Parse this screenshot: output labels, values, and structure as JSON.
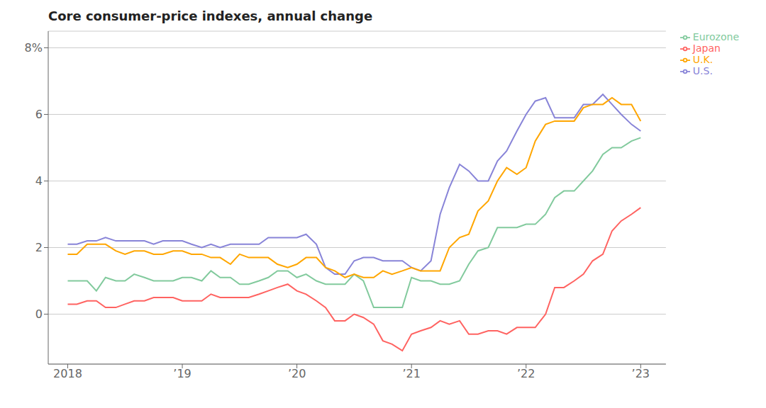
{
  "chart_data": {
    "type": "line",
    "title": "Core consumer-price indexes, annual change",
    "x": [
      2018.0,
      2018.08,
      2018.17,
      2018.25,
      2018.33,
      2018.42,
      2018.5,
      2018.58,
      2018.67,
      2018.75,
      2018.83,
      2018.92,
      2019.0,
      2019.08,
      2019.17,
      2019.25,
      2019.33,
      2019.42,
      2019.5,
      2019.58,
      2019.67,
      2019.75,
      2019.83,
      2019.92,
      2020.0,
      2020.08,
      2020.17,
      2020.25,
      2020.33,
      2020.42,
      2020.5,
      2020.58,
      2020.67,
      2020.75,
      2020.83,
      2020.92,
      2021.0,
      2021.08,
      2021.17,
      2021.25,
      2021.33,
      2021.42,
      2021.5,
      2021.58,
      2021.67,
      2021.75,
      2021.83,
      2021.92,
      2022.0,
      2022.08,
      2022.17,
      2022.25,
      2022.33,
      2022.42,
      2022.5,
      2022.58,
      2022.67,
      2022.75,
      2022.83,
      2022.92,
      2023.0
    ],
    "series": [
      {
        "name": "U.S.",
        "color": "#8884d8",
        "values": [
          2.1,
          2.1,
          2.2,
          2.2,
          2.3,
          2.2,
          2.2,
          2.2,
          2.2,
          2.1,
          2.2,
          2.2,
          2.2,
          2.1,
          2.0,
          2.1,
          2.0,
          2.1,
          2.1,
          2.1,
          2.1,
          2.3,
          2.3,
          2.3,
          2.3,
          2.4,
          2.1,
          1.4,
          1.2,
          1.2,
          1.6,
          1.7,
          1.7,
          1.6,
          1.6,
          1.6,
          1.4,
          1.3,
          1.6,
          3.0,
          3.8,
          4.5,
          4.3,
          4.0,
          4.0,
          4.6,
          4.9,
          5.5,
          6.0,
          6.4,
          6.5,
          5.9,
          5.9,
          5.9,
          6.3,
          6.3,
          6.6,
          6.3,
          6.0,
          5.7,
          5.5
        ]
      },
      {
        "name": "Eurozone",
        "color": "#82ca9d",
        "values": [
          1.0,
          1.0,
          1.0,
          0.7,
          1.1,
          1.0,
          1.0,
          1.2,
          1.1,
          1.0,
          1.0,
          1.0,
          1.1,
          1.1,
          1.0,
          1.3,
          1.1,
          1.1,
          0.9,
          0.9,
          1.0,
          1.1,
          1.3,
          1.3,
          1.1,
          1.2,
          1.0,
          0.9,
          0.9,
          0.9,
          1.2,
          1.0,
          0.2,
          0.2,
          0.2,
          0.2,
          1.1,
          1.0,
          1.0,
          0.9,
          0.9,
          1.0,
          1.5,
          1.9,
          2.0,
          2.6,
          2.6,
          2.6,
          2.7,
          2.7,
          3.0,
          3.5,
          3.7,
          3.7,
          4.0,
          4.3,
          4.8,
          5.0,
          5.0,
          5.2,
          5.3
        ]
      },
      {
        "name": "U.K.",
        "color": "#ffa600",
        "values": [
          1.8,
          1.8,
          2.1,
          2.1,
          2.1,
          1.9,
          1.8,
          1.9,
          1.9,
          1.8,
          1.8,
          1.9,
          1.9,
          1.8,
          1.8,
          1.7,
          1.7,
          1.5,
          1.8,
          1.7,
          1.7,
          1.7,
          1.5,
          1.4,
          1.5,
          1.7,
          1.7,
          1.4,
          1.3,
          1.1,
          1.2,
          1.1,
          1.1,
          1.3,
          1.2,
          1.3,
          1.4,
          1.3,
          1.3,
          1.3,
          2.0,
          2.3,
          2.4,
          3.1,
          3.4,
          4.0,
          4.4,
          4.2,
          4.4,
          5.2,
          5.7,
          5.8,
          5.8,
          5.8,
          6.2,
          6.3,
          6.3,
          6.5,
          6.3,
          6.3,
          5.8
        ]
      },
      {
        "name": "Japan",
        "color": "#ff6361",
        "values": [
          0.3,
          0.3,
          0.4,
          0.4,
          0.2,
          0.2,
          0.3,
          0.4,
          0.4,
          0.5,
          0.5,
          0.5,
          0.4,
          0.4,
          0.4,
          0.6,
          0.5,
          0.5,
          0.5,
          0.5,
          0.6,
          0.7,
          0.8,
          0.9,
          0.7,
          0.6,
          0.4,
          0.2,
          -0.2,
          -0.2,
          0.0,
          -0.1,
          -0.3,
          -0.8,
          -0.9,
          -1.1,
          -0.6,
          -0.5,
          -0.4,
          -0.2,
          -0.3,
          -0.2,
          -0.6,
          -0.6,
          -0.5,
          -0.5,
          -0.6,
          -0.4,
          -0.4,
          -0.4,
          0.0,
          0.8,
          0.8,
          1.0,
          1.2,
          1.6,
          1.8,
          2.5,
          2.8,
          3.0,
          3.2
        ]
      }
    ],
    "xlim": [
      2017.83,
      2023.22
    ],
    "xticks": [
      2018,
      {
        "value": 2019,
        "label": "’19"
      },
      {
        "value": 2020,
        "label": "’20"
      },
      {
        "value": 2021,
        "label": "’21"
      },
      {
        "value": 2022,
        "label": "’22"
      },
      {
        "value": 2023,
        "label": "’23"
      }
    ],
    "ylim": [
      -1.5,
      8.5
    ],
    "yticks": [
      0,
      2,
      4,
      6,
      {
        "value": 8,
        "label": "8%"
      }
    ],
    "grid": true,
    "legend": "right"
  }
}
